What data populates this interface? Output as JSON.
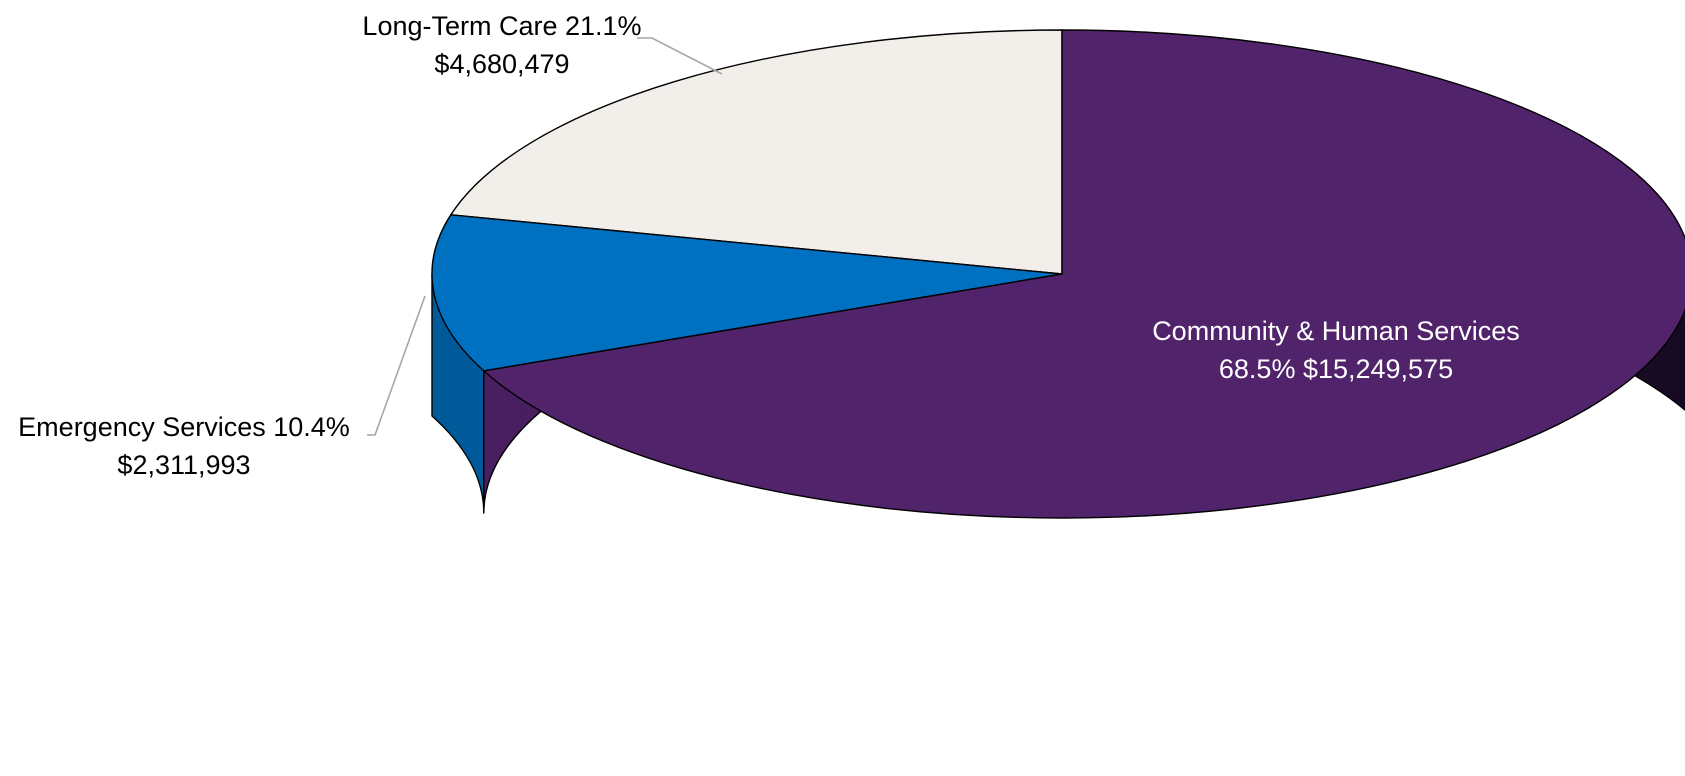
{
  "chart_data": {
    "type": "pie",
    "style": "3d",
    "title": "",
    "slices": [
      {
        "label": "Long-Term Care",
        "percent": 21.1,
        "percent_text": "21.1%",
        "amount": 4680479,
        "amount_text": "$4,680,479",
        "color": "#f2eeea",
        "label_line1": "Long-Term Care 21.1%",
        "label_line2": "$4,680,479",
        "label_position": "outside-top"
      },
      {
        "label": "Emergency Services",
        "percent": 10.4,
        "percent_text": "10.4%",
        "amount": 2311993,
        "amount_text": "$2,311,993",
        "color": "#0070c0",
        "label_line1": "Emergency Services 10.4%",
        "label_line2": "$2,311,993",
        "label_position": "outside-left"
      },
      {
        "label": "Community & Human Services",
        "percent": 68.5,
        "percent_text": "68.5%",
        "amount": 15249575,
        "amount_text": "$15,249,575",
        "color": "#50236b",
        "label_line1": "Community & Human Services",
        "label_line2": "68.5% $15,249,575",
        "label_position": "inside"
      }
    ],
    "start_angle": "12 o'clock",
    "direction": "counterclockwise",
    "legend": "none"
  }
}
